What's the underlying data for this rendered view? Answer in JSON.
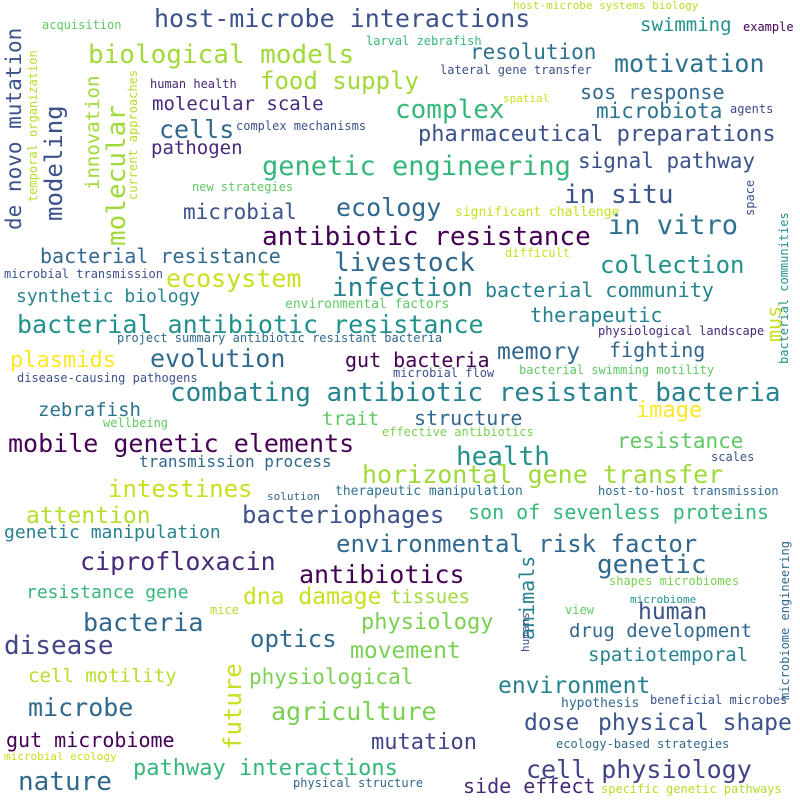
{
  "words": [
    {
      "text": "host-microbe interactions",
      "color": "#3b528b"
    },
    {
      "text": "host-microbe systems biology",
      "color": "#b5de2b"
    },
    {
      "text": "acquisition",
      "color": "#5ec962"
    },
    {
      "text": "larval zebrafish",
      "color": "#35b779"
    },
    {
      "text": "example",
      "color": "#440154"
    },
    {
      "text": "swimming",
      "color": "#21918c"
    },
    {
      "text": "biological models",
      "color": "#a0da39"
    },
    {
      "text": "resolution",
      "color": "#2c728e"
    },
    {
      "text": "motivation",
      "color": "#2c728e"
    },
    {
      "text": "food supply",
      "color": "#a0da39"
    },
    {
      "text": "lateral gene transfer",
      "color": "#3b528b"
    },
    {
      "text": "human health",
      "color": "#482878"
    },
    {
      "text": "spatial",
      "color": "#c8e020"
    },
    {
      "text": "sos response",
      "color": "#31688e"
    },
    {
      "text": "molecular scale",
      "color": "#482878"
    },
    {
      "text": "complex",
      "color": "#35b779"
    },
    {
      "text": "microbiota",
      "color": "#2c728e"
    },
    {
      "text": "agents",
      "color": "#414487"
    },
    {
      "text": "cells",
      "color": "#31688e"
    },
    {
      "text": "complex mechanisms",
      "color": "#3b528b"
    },
    {
      "text": "pharmaceutical preparations",
      "color": "#3b528b"
    },
    {
      "text": "pathogen",
      "color": "#482878"
    },
    {
      "text": "genetic engineering",
      "color": "#35b779"
    },
    {
      "text": "signal pathway",
      "color": "#3b528b"
    },
    {
      "text": "new strategies",
      "color": "#5ec962"
    },
    {
      "text": "in situ",
      "color": "#3b528b"
    },
    {
      "text": "microbial",
      "color": "#3b528b"
    },
    {
      "text": "ecology",
      "color": "#31688e"
    },
    {
      "text": "significant challenge",
      "color": "#c8e020"
    },
    {
      "text": "in vitro",
      "color": "#2c728e"
    },
    {
      "text": "antibiotic resistance",
      "color": "#440154"
    },
    {
      "text": "bacterial resistance",
      "color": "#31688e"
    },
    {
      "text": "difficult",
      "color": "#c8e020"
    },
    {
      "text": "livestock",
      "color": "#31688e"
    },
    {
      "text": "collection",
      "color": "#21918c"
    },
    {
      "text": "microbial transmission",
      "color": "#3b528b"
    },
    {
      "text": "ecosystem",
      "color": "#c8e020"
    },
    {
      "text": "infection",
      "color": "#26828e"
    },
    {
      "text": "bacterial community",
      "color": "#26828e"
    },
    {
      "text": "synthetic biology",
      "color": "#26828e"
    },
    {
      "text": "environmental factors",
      "color": "#5ec962"
    },
    {
      "text": "therapeutic",
      "color": "#26828e"
    },
    {
      "text": "bacterial antibiotic resistance",
      "color": "#21918c"
    },
    {
      "text": "project summary antibiotic resistant bacteria",
      "color": "#31688e"
    },
    {
      "text": "physiological landscape",
      "color": "#482878"
    },
    {
      "text": "plasmids",
      "color": "#fde725"
    },
    {
      "text": "evolution",
      "color": "#31688e"
    },
    {
      "text": "gut bacteria",
      "color": "#440154"
    },
    {
      "text": "memory",
      "color": "#31688e"
    },
    {
      "text": "fighting",
      "color": "#31688e"
    },
    {
      "text": "disease-causing pathogens",
      "color": "#3b528b"
    },
    {
      "text": "microbial flow",
      "color": "#3b528b"
    },
    {
      "text": "bacterial swimming motility",
      "color": "#5ec962"
    },
    {
      "text": "combating antibiotic resistant bacteria",
      "color": "#26828e"
    },
    {
      "text": "zebrafish",
      "color": "#2c728e"
    },
    {
      "text": "image",
      "color": "#fde725"
    },
    {
      "text": "trait",
      "color": "#5ec962"
    },
    {
      "text": "structure",
      "color": "#31688e"
    },
    {
      "text": "wellbeing",
      "color": "#5ec962"
    },
    {
      "text": "effective antibiotics",
      "color": "#7ad151"
    },
    {
      "text": "mobile genetic elements",
      "color": "#440154"
    },
    {
      "text": "resistance",
      "color": "#5ec962"
    },
    {
      "text": "health",
      "color": "#21918c"
    },
    {
      "text": "scales",
      "color": "#3b528b"
    },
    {
      "text": "transmission process",
      "color": "#31688e"
    },
    {
      "text": "horizontal gene transfer",
      "color": "#a0da39"
    },
    {
      "text": "intestines",
      "color": "#c8e020"
    },
    {
      "text": "solution",
      "color": "#31688e"
    },
    {
      "text": "therapeutic manipulation",
      "color": "#2c728e"
    },
    {
      "text": "host-to-host transmission",
      "color": "#31688e"
    },
    {
      "text": "attention",
      "color": "#b5de2b"
    },
    {
      "text": "bacteriophages",
      "color": "#3b528b"
    },
    {
      "text": "son of sevenless proteins",
      "color": "#35b779"
    },
    {
      "text": "genetic manipulation",
      "color": "#26828e"
    },
    {
      "text": "environmental risk factor",
      "color": "#31688e"
    },
    {
      "text": "ciprofloxacin",
      "color": "#482878"
    },
    {
      "text": "antibiotics",
      "color": "#440154"
    },
    {
      "text": "genetic",
      "color": "#31688e"
    },
    {
      "text": "resistance gene",
      "color": "#35b779"
    },
    {
      "text": "dna damage",
      "color": "#c8e020"
    },
    {
      "text": "tissues",
      "color": "#a0da39"
    },
    {
      "text": "shapes microbiomes",
      "color": "#7ad151"
    },
    {
      "text": "bacteria",
      "color": "#31688e"
    },
    {
      "text": "mice",
      "color": "#b5de2b"
    },
    {
      "text": "human",
      "color": "#3b528b"
    },
    {
      "text": "microbiome",
      "color": "#21918c"
    },
    {
      "text": "disease",
      "color": "#414487"
    },
    {
      "text": "optics",
      "color": "#31688e"
    },
    {
      "text": "physiology",
      "color": "#7ad151"
    },
    {
      "text": "drug development",
      "color": "#31688e"
    },
    {
      "text": "view",
      "color": "#5ec962"
    },
    {
      "text": "movement",
      "color": "#7ad151"
    },
    {
      "text": "spatiotemporal",
      "color": "#26828e"
    },
    {
      "text": "cell motility",
      "color": "#b5de2b"
    },
    {
      "text": "physiological",
      "color": "#7ad151"
    },
    {
      "text": "environment",
      "color": "#26828e"
    },
    {
      "text": "microbe",
      "color": "#31688e"
    },
    {
      "text": "agriculture",
      "color": "#7ad151"
    },
    {
      "text": "hypothesis",
      "color": "#31688e"
    },
    {
      "text": "beneficial microbes",
      "color": "#3b528b"
    },
    {
      "text": "dose",
      "color": "#3b528b"
    },
    {
      "text": "physical shape",
      "color": "#3b528b"
    },
    {
      "text": "gut microbiome",
      "color": "#440154"
    },
    {
      "text": "mutation",
      "color": "#414487"
    },
    {
      "text": "ecology-based strategies",
      "color": "#31688e"
    },
    {
      "text": "microbial ecology",
      "color": "#c8e020"
    },
    {
      "text": "pathway interactions",
      "color": "#35b779"
    },
    {
      "text": "cell physiology",
      "color": "#414487"
    },
    {
      "text": "nature",
      "color": "#31688e"
    },
    {
      "text": "side effect",
      "color": "#482878"
    },
    {
      "text": "physical structure",
      "color": "#31688e"
    },
    {
      "text": "specific genetic pathways",
      "color": "#b5de2b"
    },
    {
      "text": "de novo mutation",
      "color": "#3b528b"
    },
    {
      "text": "temporal organization",
      "color": "#b5de2b"
    },
    {
      "text": "modeling",
      "color": "#3b528b"
    },
    {
      "text": "innovation",
      "color": "#a0da39"
    },
    {
      "text": "current approaches",
      "color": "#b5de2b"
    },
    {
      "text": "molecular",
      "color": "#a0da39"
    },
    {
      "text": "space",
      "color": "#3b528b"
    },
    {
      "text": "bacterial communities",
      "color": "#21918c"
    },
    {
      "text": "mus",
      "color": "#c8e020"
    },
    {
      "text": "animals",
      "color": "#26828e"
    },
    {
      "text": "humans",
      "color": "#3b528b"
    },
    {
      "text": "future",
      "color": "#c8e020"
    },
    {
      "text": "microbiome engineering",
      "color": "#31688e"
    }
  ]
}
